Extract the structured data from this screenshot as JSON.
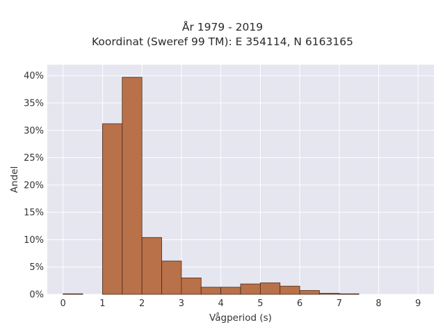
{
  "chart_data": {
    "type": "bar",
    "title": "År 1979 - 2019",
    "subtitle": "Koordinat (Sweref 99 TM): E 354114, N 6163165",
    "xlabel": "Vågperiod (s)",
    "ylabel": "Andel",
    "xlim": [
      -0.4,
      9.4
    ],
    "ylim": [
      0,
      0.42
    ],
    "x_ticks": [
      0,
      1,
      2,
      3,
      4,
      5,
      6,
      7,
      8,
      9
    ],
    "x_tick_labels": [
      "0",
      "1",
      "2",
      "3",
      "4",
      "5",
      "6",
      "7",
      "8",
      "9"
    ],
    "y_ticks": [
      0,
      0.05,
      0.1,
      0.15,
      0.2,
      0.25,
      0.3,
      0.35,
      0.4
    ],
    "y_tick_labels": [
      "0%",
      "5%",
      "10%",
      "15%",
      "20%",
      "25%",
      "30%",
      "35%",
      "40%"
    ],
    "bin_width": 0.5,
    "bin_starts": [
      0,
      0.5,
      1.0,
      1.5,
      2.0,
      2.5,
      3.0,
      3.5,
      4.0,
      4.5,
      5.0,
      5.5,
      6.0,
      6.5,
      7.0,
      7.5,
      8.0,
      8.5
    ],
    "values": [
      0.001,
      0,
      0.312,
      0.397,
      0.104,
      0.061,
      0.03,
      0.013,
      0.013,
      0.019,
      0.021,
      0.015,
      0.007,
      0.002,
      0.001,
      0,
      0,
      0
    ],
    "grid": true,
    "colors": {
      "bar_fill": "#b9714a",
      "bar_edge": "#4a2a18",
      "plot_bg": "#e5e6ef",
      "grid": "#ffffff"
    }
  }
}
